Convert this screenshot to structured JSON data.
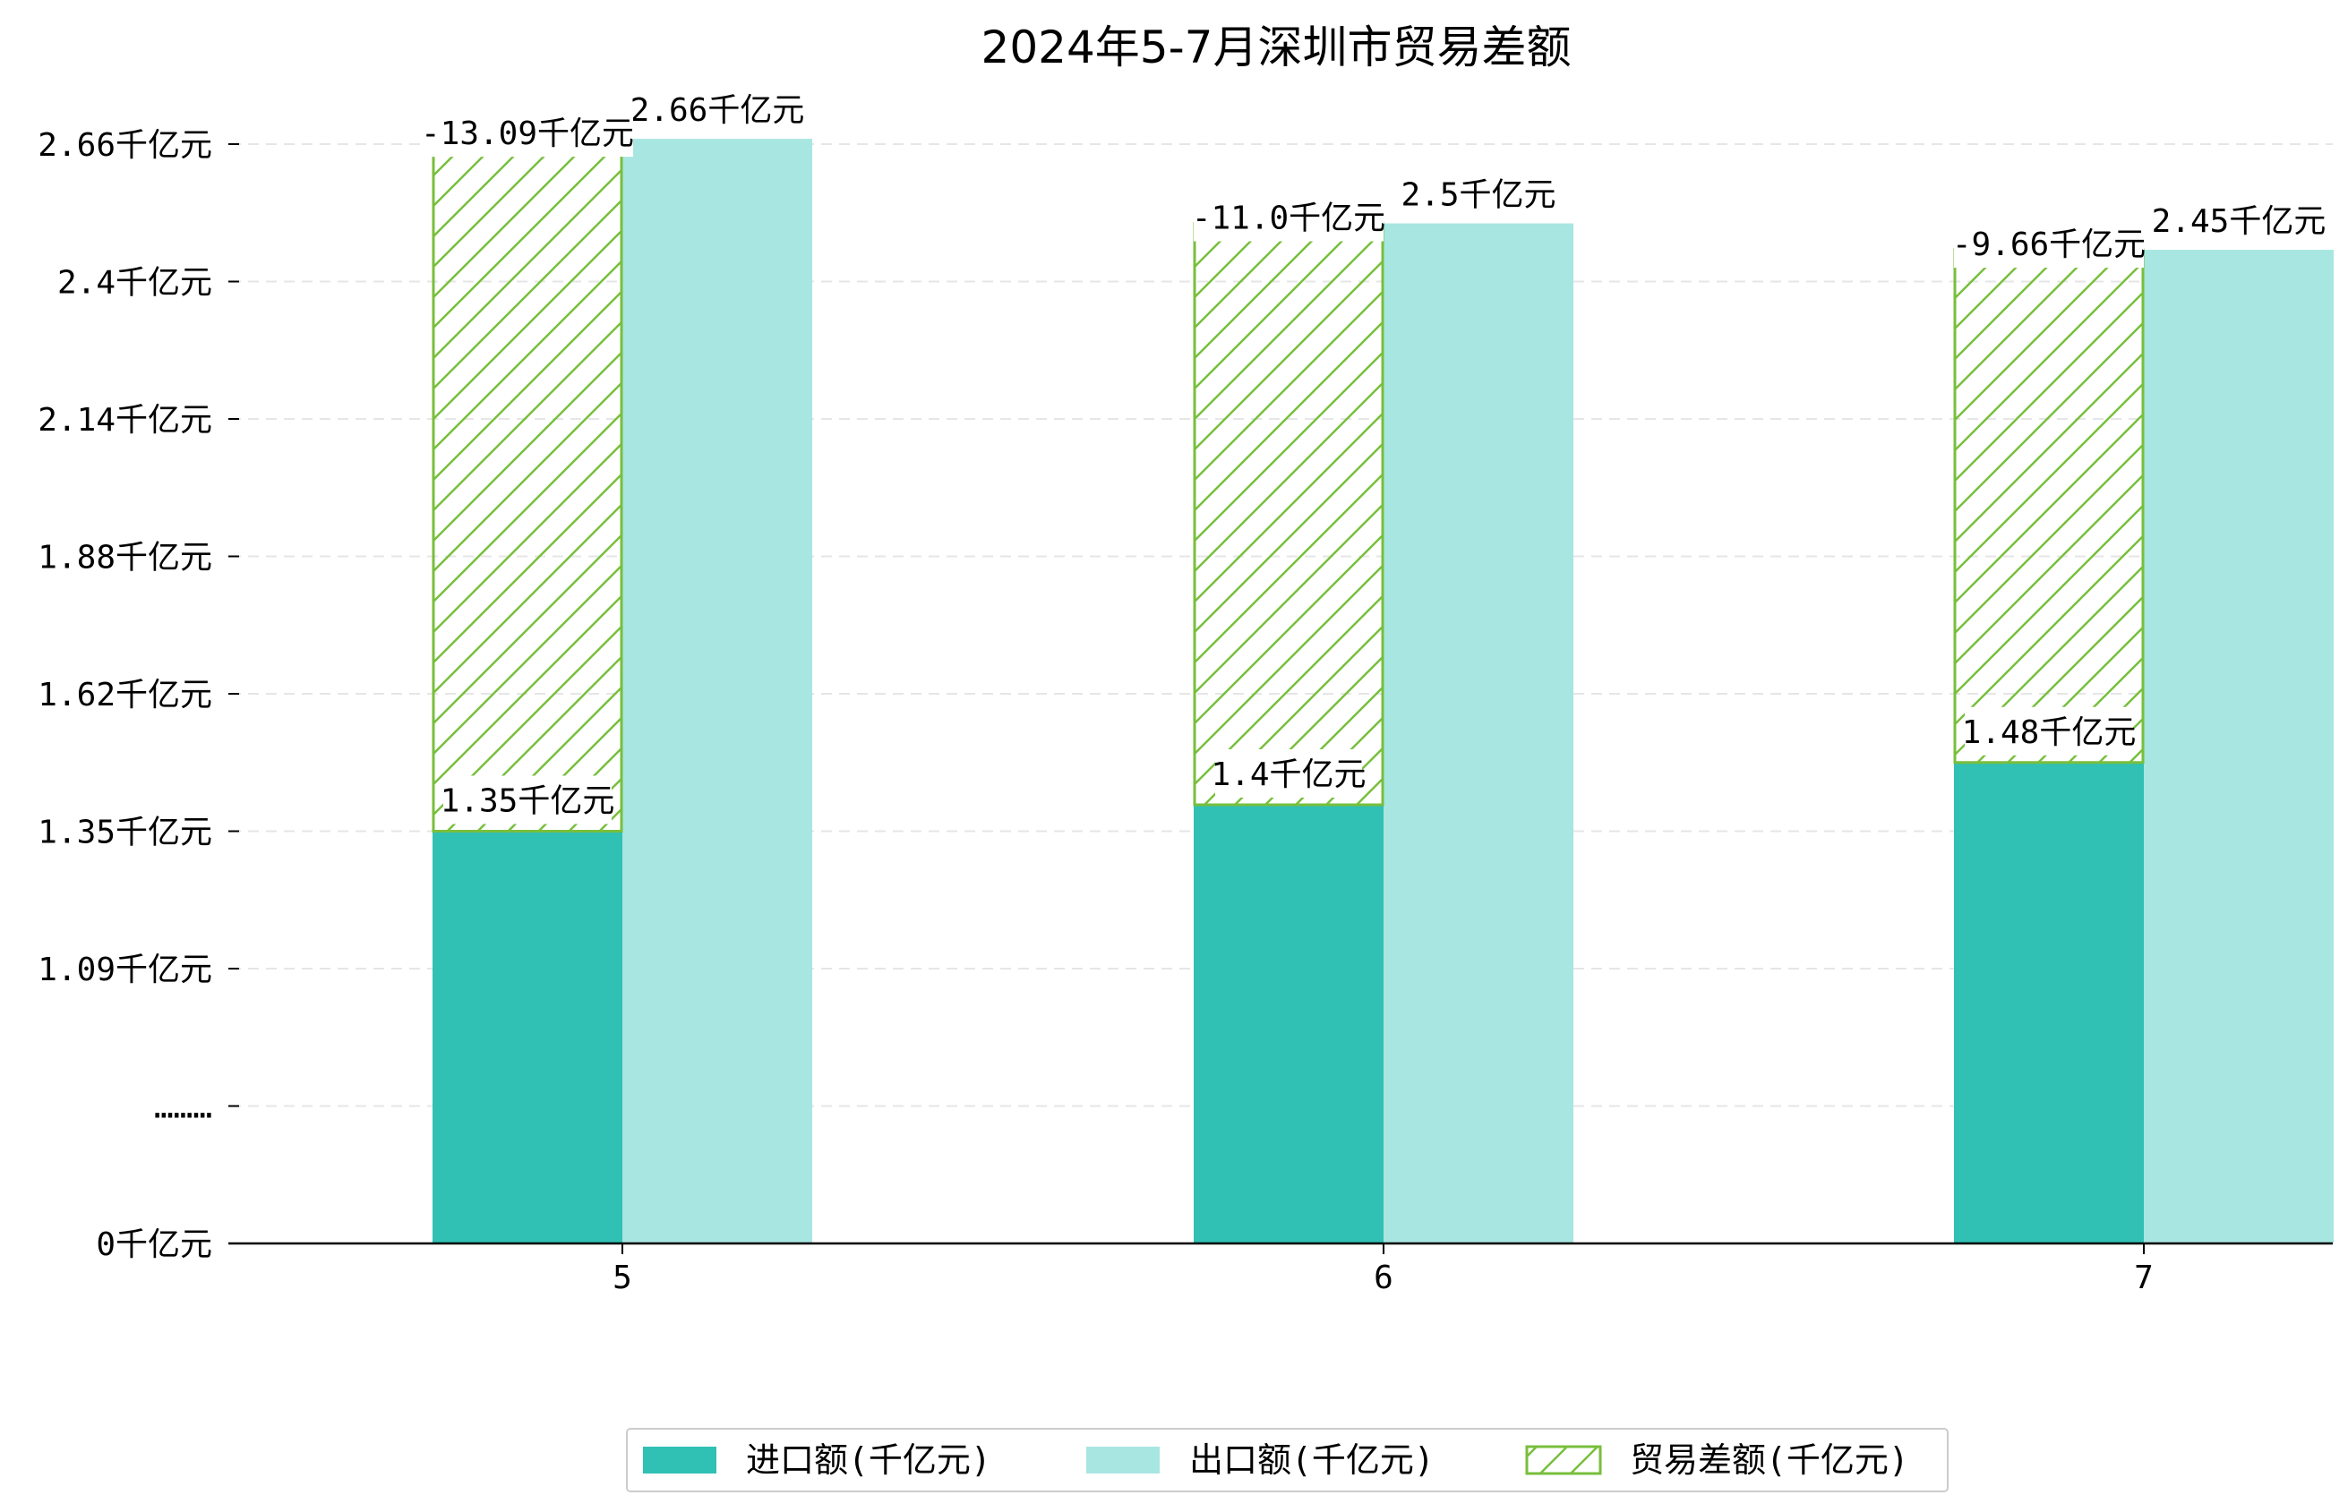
{
  "chart_data": {
    "type": "bar",
    "title": "2024年5-7月深圳市贸易差额",
    "categories": [
      "5",
      "6",
      "7"
    ],
    "series": [
      {
        "name": "进口额(千亿元)",
        "values": [
          1.35,
          1.4,
          1.48
        ],
        "labels": [
          "1.35千亿元",
          "1.4千亿元",
          "1.48千亿元"
        ],
        "color": "#31c0b4"
      },
      {
        "name": "出口额(千亿元)",
        "values": [
          2.66,
          2.5,
          2.45
        ],
        "labels": [
          "2.66千亿元",
          "2.5千亿元",
          "2.45千亿元"
        ],
        "color": "#a8e6e1"
      },
      {
        "name": "贸易差额(千亿元)",
        "values": [
          -13.09,
          -11.0,
          -9.66
        ],
        "labels": [
          "-13.09千亿元",
          "-11.0千亿元",
          "-9.66千亿元"
        ],
        "color": "#78bf3c",
        "hatch": true
      }
    ],
    "y_ticks": [
      "0千亿元",
      "………",
      "1.09千亿元",
      "1.35千亿元",
      "1.62千亿元",
      "1.88千亿元",
      "2.14千亿元",
      "2.4千亿元",
      "2.66千亿元"
    ],
    "axis_break": true,
    "grid": true,
    "legend_position": "bottom-center"
  }
}
